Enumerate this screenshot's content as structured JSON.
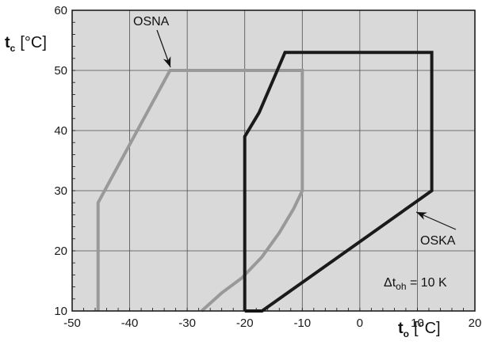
{
  "chart_data": {
    "type": "line",
    "x_axis": {
      "symbol": "t",
      "subscript": "o",
      "unit": "[°C]",
      "range": [
        -50,
        20
      ],
      "ticks": [
        -50,
        -40,
        -30,
        -20,
        -10,
        0,
        10,
        20
      ],
      "tick_labels": [
        "-50",
        "-40",
        "-30",
        "-20",
        "-10",
        "0",
        "10",
        "20"
      ]
    },
    "y_axis": {
      "symbol": "t",
      "subscript": "c",
      "unit": "[°C]",
      "range": [
        10,
        60
      ],
      "ticks": [
        10,
        20,
        30,
        40,
        50,
        60
      ],
      "tick_labels": [
        "10",
        "20",
        "30",
        "40",
        "50",
        "60"
      ]
    },
    "grid": true,
    "background_color": "#d9d9d9",
    "series": [
      {
        "name": "OSNA",
        "color": "#999999",
        "points": [
          [
            -45.5,
            10
          ],
          [
            -45.5,
            28
          ],
          [
            -33,
            50
          ],
          [
            -10,
            50
          ],
          [
            -10,
            30
          ],
          [
            -11.5,
            27
          ],
          [
            -14,
            23
          ],
          [
            -17,
            19
          ],
          [
            -20.5,
            15.5
          ],
          [
            -24,
            13
          ],
          [
            -27.5,
            10
          ]
        ]
      },
      {
        "name": "OSKA",
        "color": "#1a1a1a",
        "points": [
          [
            -20,
            10
          ],
          [
            -20,
            39
          ],
          [
            -17.5,
            43
          ],
          [
            -13,
            53
          ],
          [
            12.5,
            53
          ],
          [
            12.5,
            30
          ],
          [
            -17,
            10
          ],
          [
            -20,
            10
          ]
        ]
      }
    ],
    "annotations": [
      {
        "text": "OSNA",
        "arrow_to": [
          -33,
          50
        ]
      },
      {
        "text": "OSKA",
        "arrow_to": [
          9.5,
          28
        ]
      },
      {
        "text_prefix": "Δt",
        "text_sub": "oh",
        "text_suffix": " = 10 K"
      }
    ]
  }
}
